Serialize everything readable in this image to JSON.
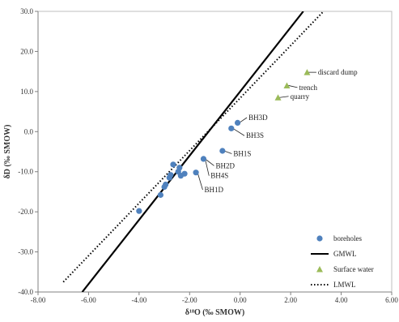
{
  "chart_data": {
    "type": "scatter",
    "title": "",
    "xlabel": "δ¹⁸O (‰ SMOW)",
    "ylabel": "δD (‰ SMOW)",
    "xlim": [
      -8,
      6
    ],
    "ylim": [
      -40,
      30
    ],
    "x_ticks": [
      -8,
      -6,
      -4,
      -2,
      0,
      2,
      4,
      6
    ],
    "y_ticks": [
      -40,
      -30,
      -20,
      -10,
      0,
      10,
      20,
      30
    ],
    "x_tick_labels": [
      "-8.00",
      "-6.00",
      "-4.00",
      "-2.00",
      "0.00",
      "2.00",
      "4.00",
      "6.00"
    ],
    "y_tick_labels": [
      "-40.0",
      "-30.0",
      "-20.0",
      "-10.0",
      "0.0",
      "10.0",
      "20.0",
      "30.0"
    ],
    "grid": false,
    "legend_position": "bottom-right",
    "series": [
      {
        "name": "boreholes",
        "kind": "points",
        "marker": "circle",
        "color": "#4f81bd",
        "points": [
          {
            "x": -4.0,
            "y": -19.8
          },
          {
            "x": -3.15,
            "y": -15.8
          },
          {
            "x": -3.0,
            "y": -13.8
          },
          {
            "x": -2.95,
            "y": -13.2
          },
          {
            "x": -2.8,
            "y": -11.5
          },
          {
            "x": -2.75,
            "y": -10.8
          },
          {
            "x": -2.65,
            "y": -8.2
          },
          {
            "x": -2.45,
            "y": -10.0
          },
          {
            "x": -2.4,
            "y": -9.0
          },
          {
            "x": -2.35,
            "y": -11.0
          },
          {
            "x": -2.2,
            "y": -10.5
          },
          {
            "x": -1.75,
            "y": -10.2
          },
          {
            "x": -1.45,
            "y": -6.8
          },
          {
            "x": -0.7,
            "y": -4.8
          },
          {
            "x": -0.35,
            "y": 0.8
          },
          {
            "x": -0.1,
            "y": 2.2
          }
        ]
      },
      {
        "name": "GMWL",
        "kind": "line",
        "style": "solid",
        "color": "#000000",
        "x": [
          -6.25,
          2.5
        ],
        "y": [
          -40,
          30
        ]
      },
      {
        "name": "Surface water",
        "kind": "points",
        "marker": "triangle",
        "color": "#9bbb59",
        "points": [
          {
            "x": 1.5,
            "y": 8.5
          },
          {
            "x": 1.85,
            "y": 11.5
          },
          {
            "x": 2.65,
            "y": 14.8
          }
        ]
      },
      {
        "name": "LMWL",
        "kind": "line",
        "style": "dotted",
        "color": "#000000",
        "x": [
          -7.0,
          3.3
        ],
        "y": [
          -37.5,
          30
        ]
      }
    ],
    "annotations": [
      {
        "text": "BH3D",
        "point": [
          -0.1,
          2.2
        ],
        "label": [
          0.3,
          3.5
        ]
      },
      {
        "text": "BH3S",
        "point": [
          -0.35,
          0.8
        ],
        "label": [
          0.2,
          -1.0
        ]
      },
      {
        "text": "BH1S",
        "point": [
          -0.7,
          -4.8
        ],
        "label": [
          -0.3,
          -5.5
        ]
      },
      {
        "text": "BH2D",
        "point": [
          -1.45,
          -6.8
        ],
        "label": [
          -1.0,
          -8.5
        ]
      },
      {
        "text": "BH4S",
        "point": [
          -1.45,
          -6.8
        ],
        "label": [
          -1.2,
          -11.0
        ]
      },
      {
        "text": "BH1D",
        "point": [
          -1.75,
          -10.2
        ],
        "label": [
          -1.45,
          -14.5
        ]
      },
      {
        "text": "discard dump",
        "point": [
          2.65,
          14.8
        ],
        "label": [
          3.05,
          14.8
        ]
      },
      {
        "text": "trench",
        "point": [
          1.85,
          11.5
        ],
        "label": [
          2.3,
          11.0
        ]
      },
      {
        "text": "quarry",
        "point": [
          1.5,
          8.5
        ],
        "label": [
          1.95,
          8.8
        ]
      }
    ]
  }
}
